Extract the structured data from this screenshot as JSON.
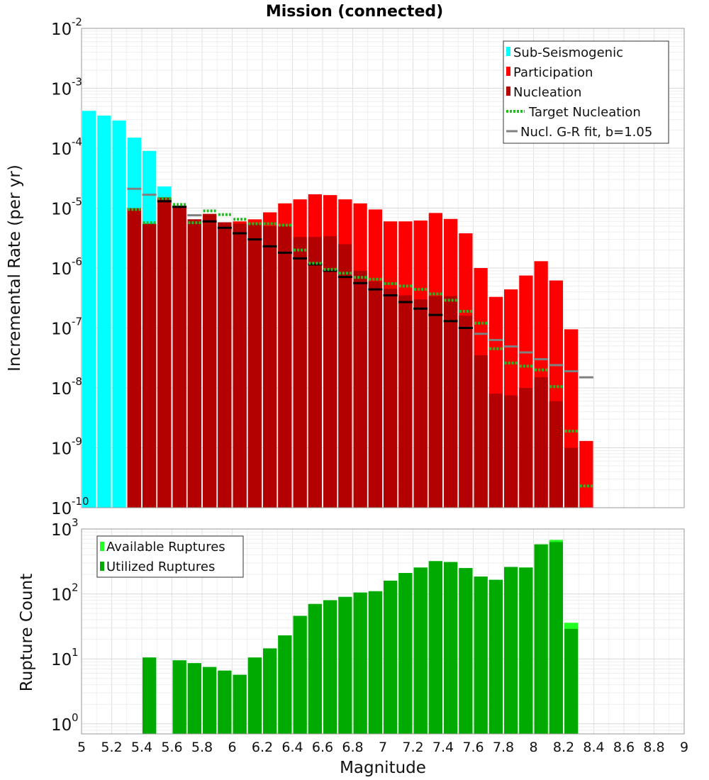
{
  "title": "Mission (connected)",
  "chart_data": [
    {
      "type": "bar",
      "title": "Mission (connected)",
      "xlabel": "Magnitude",
      "ylabel": "Incremental Rate (per yr)",
      "xlim": [
        5,
        9
      ],
      "ylim": [
        1e-10,
        0.01
      ],
      "yscale": "log",
      "grid": true,
      "legend_position": "top-right",
      "bin_width": 0.1,
      "x_ticks": [
        "5",
        "5.2",
        "5.4",
        "5.6",
        "5.8",
        "6",
        "6.2",
        "6.4",
        "6.6",
        "6.8",
        "7",
        "7.2",
        "7.4",
        "7.6",
        "7.8",
        "8",
        "8.2",
        "8.4",
        "8.6",
        "8.8",
        "9"
      ],
      "y_tick_exponents": [
        "-10",
        "-9",
        "-8",
        "-7",
        "-6",
        "-5",
        "-4",
        "-3",
        "-2"
      ],
      "legend": [
        "Sub-Seismogenic",
        "Participation",
        "Nucleation",
        "Target Nucleation",
        "Nucl. G-R fit, b=1.05"
      ],
      "colors": {
        "sub_seismogenic": "#00ffff",
        "participation": "#ff0000",
        "nucleation": "#b30000",
        "target_nucleation": "#22bb22",
        "gr_fit_gray": "#808080",
        "gr_fit_dark": "#000000"
      },
      "series": [
        {
          "name": "Sub-Seismogenic",
          "x": [
            5.0,
            5.1,
            5.2,
            5.3,
            5.4,
            5.5
          ],
          "values": [
            0.00042,
            0.00035,
            0.00029,
            0.00015,
            9e-05,
            2.3e-05
          ]
        },
        {
          "name": "Participation",
          "x": [
            5.3,
            5.4,
            5.5,
            5.6,
            5.7,
            5.8,
            5.9,
            6.0,
            6.1,
            6.2,
            6.3,
            6.4,
            6.5,
            6.6,
            6.7,
            6.8,
            6.9,
            7.0,
            7.1,
            7.2,
            7.3,
            7.4,
            7.5,
            7.6,
            7.7,
            7.8,
            7.9,
            8.0,
            8.1,
            8.2,
            8.3
          ],
          "values": [
            1e-05,
            5.5e-06,
            1.5e-05,
            1.1e-05,
            6.5e-06,
            8e-06,
            5.8e-06,
            6e-06,
            6.5e-06,
            8.5e-06,
            1.2e-05,
            1.4e-05,
            1.7e-05,
            1.65e-05,
            1.4e-05,
            1.2e-05,
            9.5e-06,
            6e-06,
            6e-06,
            6.2e-06,
            8.3e-06,
            6.6e-06,
            3.8e-06,
            1e-06,
            3.3e-07,
            4.4e-07,
            7.5e-07,
            1.3e-06,
            6.2e-07,
            9.5e-08,
            1.3e-09
          ]
        },
        {
          "name": "Nucleation",
          "x": [
            5.3,
            5.4,
            5.5,
            5.6,
            5.7,
            5.8,
            5.9,
            6.0,
            6.1,
            6.2,
            6.3,
            6.4,
            6.5,
            6.6,
            6.7,
            6.8,
            6.9,
            7.0,
            7.1,
            7.2,
            7.3,
            7.4,
            7.5,
            7.6,
            7.7,
            7.8,
            7.9,
            8.0,
            8.1,
            8.2
          ],
          "values": [
            1e-05,
            5.5e-06,
            1.5e-05,
            1.1e-05,
            6.5e-06,
            8e-06,
            5.8e-06,
            5.5e-06,
            5.5e-06,
            5e-06,
            5e-06,
            3.3e-06,
            3.3e-06,
            3.4e-06,
            2.5e-06,
            9e-07,
            6e-07,
            4.5e-07,
            3.5e-07,
            3e-07,
            3.4e-07,
            3.4e-07,
            1.6e-07,
            3.5e-08,
            8e-09,
            7.5e-09,
            1e-08,
            1.5e-08,
            6e-09,
            1e-09
          ]
        },
        {
          "name": "Target Nucleation",
          "x": [
            5.3,
            5.4,
            5.5,
            5.6,
            5.7,
            5.8,
            5.9,
            6.0,
            6.1,
            6.2,
            6.3,
            6.4,
            6.5,
            6.6,
            6.7,
            6.8,
            6.9,
            7.0,
            7.1,
            7.2,
            7.3,
            7.4,
            7.5,
            7.6,
            7.7,
            7.8,
            7.9,
            8.0,
            8.1,
            8.2,
            8.3
          ],
          "values": [
            9.5e-06,
            5.7e-06,
            1.45e-05,
            1.15e-05,
            5.7e-06,
            9e-06,
            7.8e-06,
            6.5e-06,
            5.5e-06,
            5.5e-06,
            5.2e-06,
            2e-06,
            1.2e-06,
            9.5e-07,
            8.2e-07,
            7e-07,
            6.5e-07,
            5.5e-07,
            5e-07,
            4.4e-07,
            3.7e-07,
            2.9e-07,
            1.9e-07,
            1.2e-07,
            4.5e-08,
            2.6e-08,
            2.3e-08,
            2e-08,
            1.05e-08,
            1.9e-09,
            2.3e-10
          ]
        },
        {
          "name": "Nucl. G-R fit, b=1.05",
          "x": [
            5.3,
            5.4,
            5.5,
            5.6,
            5.7,
            5.8,
            5.9,
            6.0,
            6.1,
            6.2,
            6.3,
            6.4,
            6.5,
            6.6,
            6.7,
            6.8,
            6.9,
            7.0,
            7.1,
            7.2,
            7.3,
            7.4,
            7.5,
            7.6,
            7.7,
            7.8,
            7.9,
            8.0,
            8.1,
            8.2,
            8.3
          ],
          "values": [
            2.1e-05,
            1.67e-05,
            1.3e-05,
            1.05e-05,
            7.6e-06,
            6e-06,
            4.7e-06,
            3.8e-06,
            3e-06,
            2.3e-06,
            1.8e-06,
            1.45e-06,
            1.15e-06,
            9e-07,
            7.1e-07,
            5.6e-07,
            4.4e-07,
            3.5e-07,
            2.7e-07,
            2.1e-07,
            1.65e-07,
            1.3e-07,
            1e-07,
            8e-08,
            6.3e-08,
            4.9e-08,
            3.9e-08,
            3e-08,
            2.4e-08,
            1.9e-08,
            1.5e-08
          ]
        }
      ]
    },
    {
      "type": "bar",
      "xlabel": "Magnitude",
      "ylabel": "Rupture Count",
      "xlim": [
        5,
        9
      ],
      "ylim": [
        0.7,
        1000
      ],
      "yscale": "log",
      "grid": true,
      "legend_position": "top-left",
      "bin_width": 0.1,
      "y_tick_exponents": [
        "0",
        "1",
        "2",
        "3"
      ],
      "legend": [
        "Available Ruptures",
        "Utilized Ruptures"
      ],
      "colors": {
        "available": "#22ff22",
        "utilized": "#00aa00"
      },
      "series": [
        {
          "name": "Available Ruptures",
          "x": [
            5.4,
            5.6,
            5.7,
            5.8,
            5.9,
            6.0,
            6.1,
            6.2,
            6.3,
            6.4,
            6.5,
            6.6,
            6.7,
            6.8,
            6.9,
            7.0,
            7.1,
            7.2,
            7.3,
            7.4,
            7.5,
            7.6,
            7.7,
            7.8,
            7.9,
            8.0,
            8.1,
            8.2
          ],
          "values": [
            10.5,
            9.5,
            8.6,
            7.5,
            6.6,
            5.7,
            10.5,
            14.5,
            23,
            46,
            70,
            80,
            90,
            105,
            110,
            160,
            210,
            255,
            320,
            310,
            250,
            185,
            165,
            260,
            255,
            580,
            680,
            36
          ]
        },
        {
          "name": "Utilized Ruptures",
          "x": [
            5.4,
            5.6,
            5.7,
            5.8,
            5.9,
            6.0,
            6.1,
            6.2,
            6.3,
            6.4,
            6.5,
            6.6,
            6.7,
            6.8,
            6.9,
            7.0,
            7.1,
            7.2,
            7.3,
            7.4,
            7.5,
            7.6,
            7.7,
            7.8,
            7.9,
            8.0,
            8.1,
            8.2
          ],
          "values": [
            10.5,
            9.5,
            8.6,
            7.5,
            6.6,
            5.7,
            10.5,
            14.5,
            23,
            46,
            70,
            80,
            90,
            105,
            110,
            160,
            210,
            255,
            320,
            310,
            250,
            185,
            165,
            260,
            255,
            580,
            630,
            29
          ]
        }
      ]
    }
  ]
}
